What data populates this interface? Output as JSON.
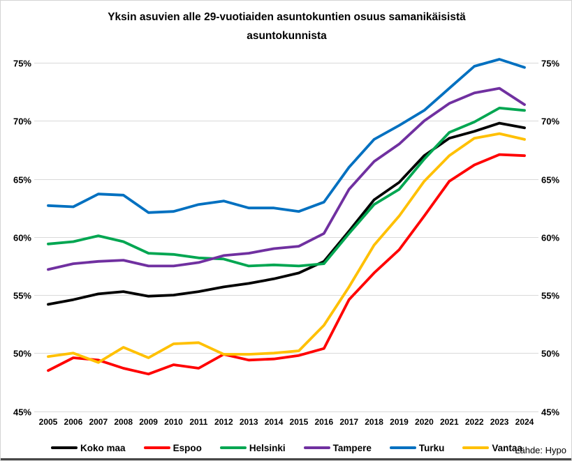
{
  "title": {
    "line1": "Yksin asuvien alle 29-vuotiaiden asuntokuntien osuus samanikäisistä",
    "line2": "asuntokunnista"
  },
  "source": "Lähde: Hypo",
  "chart_data": {
    "type": "line",
    "x": [
      2005,
      2006,
      2007,
      2008,
      2009,
      2010,
      2011,
      2012,
      2013,
      2014,
      2015,
      2016,
      2017,
      2018,
      2019,
      2020,
      2021,
      2022,
      2023,
      2024
    ],
    "ylim": [
      45,
      75
    ],
    "y_tick_step": 5,
    "y_tick_labels": [
      "45%",
      "50%",
      "55%",
      "60%",
      "65%",
      "70%",
      "75%"
    ],
    "y_axis_sides": [
      "left",
      "right"
    ],
    "grid": true,
    "legend_position": "bottom",
    "series": [
      {
        "name": "Koko maa",
        "color": "#000000",
        "values": [
          54.2,
          54.6,
          55.1,
          55.3,
          54.9,
          55.0,
          55.3,
          55.7,
          56.0,
          56.4,
          56.9,
          57.9,
          60.5,
          63.2,
          64.7,
          67.0,
          68.5,
          69.1,
          69.8,
          69.4
        ]
      },
      {
        "name": "Espoo",
        "color": "#FF0000",
        "values": [
          48.5,
          49.6,
          49.4,
          48.7,
          48.2,
          49.0,
          48.7,
          49.9,
          49.4,
          49.5,
          49.8,
          50.4,
          54.6,
          56.9,
          58.9,
          61.8,
          64.8,
          66.2,
          67.1,
          67.0
        ]
      },
      {
        "name": "Helsinki",
        "color": "#00A651",
        "values": [
          59.4,
          59.6,
          60.1,
          59.6,
          58.6,
          58.5,
          58.2,
          58.1,
          57.5,
          57.6,
          57.5,
          57.7,
          60.3,
          62.8,
          64.1,
          66.7,
          69.0,
          69.9,
          71.1,
          70.9
        ]
      },
      {
        "name": "Tampere",
        "color": "#7030A0",
        "values": [
          57.2,
          57.7,
          57.9,
          58.0,
          57.5,
          57.5,
          57.8,
          58.4,
          58.6,
          59.0,
          59.2,
          60.3,
          64.1,
          66.5,
          68.0,
          70.0,
          71.5,
          72.4,
          72.8,
          71.4
        ]
      },
      {
        "name": "Turku",
        "color": "#0070C0",
        "values": [
          62.7,
          62.6,
          63.7,
          63.6,
          62.1,
          62.2,
          62.8,
          63.1,
          62.5,
          62.5,
          62.2,
          63.0,
          66.0,
          68.4,
          69.6,
          70.9,
          72.8,
          74.7,
          75.3,
          74.6
        ]
      },
      {
        "name": "Vantaa",
        "color": "#FFC000",
        "values": [
          49.7,
          50.0,
          49.2,
          50.5,
          49.6,
          50.8,
          50.9,
          49.9,
          49.9,
          50.0,
          50.2,
          52.4,
          55.7,
          59.3,
          61.8,
          64.8,
          67.0,
          68.5,
          68.9,
          68.4
        ]
      }
    ]
  }
}
